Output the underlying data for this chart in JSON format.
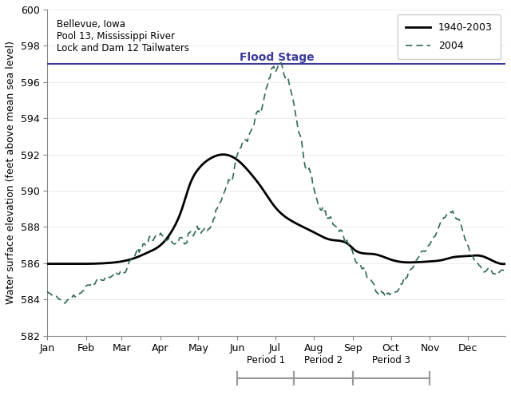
{
  "ylabel": "Water surface elevation (feet above mean sea level)",
  "flood_stage": 597.0,
  "flood_stage_label": "Flood Stage",
  "ylim": [
    582,
    600
  ],
  "yticks": [
    582,
    584,
    586,
    588,
    590,
    592,
    594,
    596,
    598,
    600
  ],
  "annotation_text": "Bellevue, Iowa\nPool 13, Mississippi River\nLock and Dam 12 Tailwaters",
  "legend_entries": [
    "1940-2003",
    "2004"
  ],
  "flood_stage_color": "#3b3b9e",
  "line1_color": "#000000",
  "line2_color": "#2d6a4f",
  "period_bar_color": "#999999",
  "months": [
    "Jan",
    "Feb",
    "Mar",
    "Apr",
    "May",
    "Jun",
    "Jul",
    "Aug",
    "Sep",
    "Oct",
    "Nov",
    "Dec"
  ],
  "month_starts": [
    0,
    31,
    59,
    90,
    120,
    151,
    181,
    212,
    243,
    273,
    304,
    334
  ],
  "mean_keypoints_x": [
    0,
    10,
    20,
    31,
    45,
    59,
    70,
    80,
    90,
    100,
    107,
    113,
    120,
    130,
    140,
    151,
    161,
    170,
    181,
    195,
    212,
    225,
    240,
    243,
    260,
    273,
    285,
    290,
    304,
    315,
    320,
    334,
    345,
    355,
    364
  ],
  "mean_keypoints_y": [
    585.97,
    585.97,
    585.97,
    585.97,
    586.0,
    586.1,
    586.3,
    586.6,
    587.0,
    587.9,
    589.0,
    590.3,
    591.2,
    591.8,
    592.0,
    591.7,
    591.0,
    590.2,
    589.1,
    588.3,
    587.7,
    587.3,
    587.0,
    586.8,
    586.5,
    586.2,
    586.05,
    586.05,
    586.1,
    586.2,
    586.3,
    586.4,
    586.4,
    586.1,
    585.97
  ],
  "data2004_keypoints_x": [
    0,
    3,
    7,
    12,
    18,
    24,
    28,
    31,
    35,
    40,
    45,
    50,
    55,
    59,
    62,
    65,
    68,
    71,
    74,
    77,
    80,
    84,
    88,
    92,
    96,
    100,
    104,
    108,
    112,
    116,
    120,
    124,
    128,
    132,
    136,
    140,
    144,
    148,
    151,
    155,
    158,
    162,
    165,
    168,
    171,
    174,
    177,
    181,
    185,
    188,
    192,
    196,
    200,
    205,
    212,
    218,
    225,
    230,
    235,
    240,
    243,
    248,
    255,
    260,
    265,
    270,
    273,
    278,
    282,
    285,
    288,
    292,
    296,
    300,
    304,
    308,
    312,
    316,
    320,
    325,
    330,
    334,
    338,
    342,
    346,
    350,
    355,
    360,
    364
  ],
  "data2004_keypoints_y": [
    584.4,
    584.2,
    584.1,
    584.0,
    584.1,
    584.3,
    584.5,
    584.7,
    584.9,
    585.1,
    585.2,
    585.3,
    585.4,
    585.5,
    585.7,
    585.9,
    586.2,
    586.5,
    586.8,
    587.1,
    587.3,
    587.4,
    587.5,
    587.5,
    587.4,
    587.3,
    587.2,
    587.2,
    587.4,
    587.6,
    587.8,
    587.7,
    588.0,
    588.5,
    589.2,
    589.8,
    590.5,
    591.0,
    592.0,
    592.5,
    592.8,
    593.2,
    593.7,
    594.3,
    594.9,
    595.5,
    596.1,
    596.7,
    596.95,
    596.7,
    596.0,
    594.8,
    593.2,
    591.5,
    589.8,
    589.0,
    588.5,
    588.0,
    587.5,
    587.0,
    586.5,
    585.9,
    585.2,
    584.8,
    584.5,
    584.3,
    584.3,
    584.5,
    584.8,
    585.2,
    585.6,
    586.0,
    586.4,
    586.7,
    587.0,
    587.5,
    588.0,
    588.5,
    588.8,
    588.5,
    587.8,
    587.0,
    586.4,
    586.0,
    585.8,
    585.6,
    585.5,
    585.5,
    585.5
  ]
}
